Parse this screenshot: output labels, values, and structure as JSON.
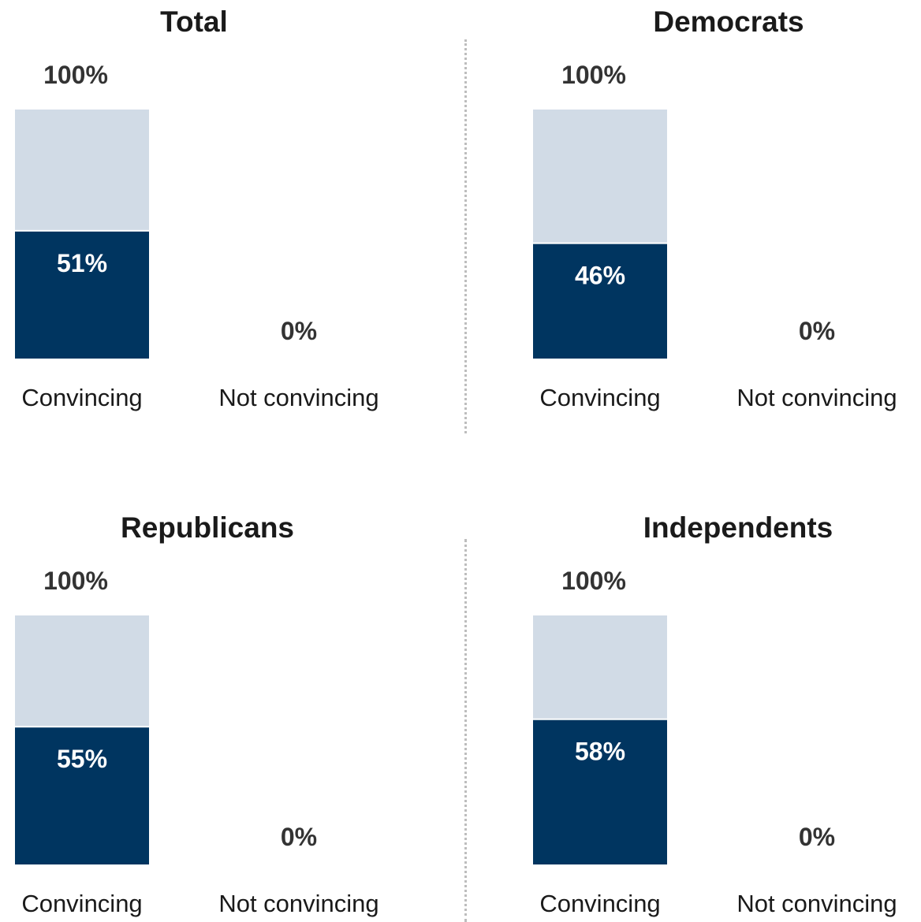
{
  "colors": {
    "filled": "#003560",
    "remainder": "#d1dbe6",
    "label_dark": "#333333",
    "label_light": "#ffffff"
  },
  "chart_data": [
    {
      "type": "bar",
      "title": "Total",
      "categories": [
        "Convincing",
        "Not convincing"
      ],
      "values": [
        51,
        0
      ],
      "value_labels": [
        "51%",
        "0%"
      ],
      "total_label": "100%",
      "ylim": [
        0,
        100
      ]
    },
    {
      "type": "bar",
      "title": "Democrats",
      "categories": [
        "Convincing",
        "Not convincing"
      ],
      "values": [
        46,
        0
      ],
      "value_labels": [
        "46%",
        "0%"
      ],
      "total_label": "100%",
      "ylim": [
        0,
        100
      ]
    },
    {
      "type": "bar",
      "title": "Republicans",
      "categories": [
        "Convincing",
        "Not convincing"
      ],
      "values": [
        55,
        0
      ],
      "value_labels": [
        "55%",
        "0%"
      ],
      "total_label": "100%",
      "ylim": [
        0,
        100
      ]
    },
    {
      "type": "bar",
      "title": "Independents",
      "categories": [
        "Convincing",
        "Not convincing"
      ],
      "values": [
        58,
        0
      ],
      "value_labels": [
        "58%",
        "0%"
      ],
      "total_label": "100%",
      "ylim": [
        0,
        100
      ]
    }
  ]
}
